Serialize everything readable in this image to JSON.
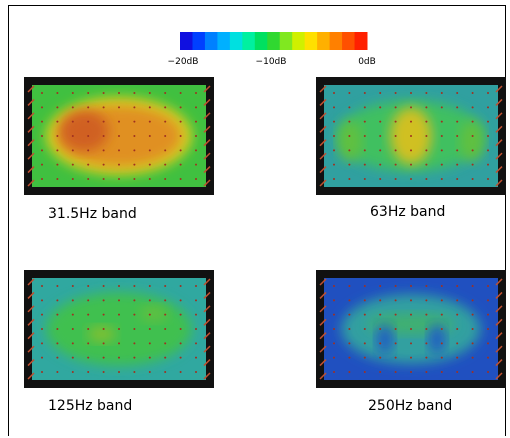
{
  "colorbar": {
    "labels": [
      "−20dB",
      "−10dB",
      "0dB"
    ]
  },
  "panels": [
    {
      "label": "31.5Hz band"
    },
    {
      "label": "63Hz band"
    },
    {
      "label": "125Hz band"
    },
    {
      "label": "250Hz band"
    }
  ]
}
